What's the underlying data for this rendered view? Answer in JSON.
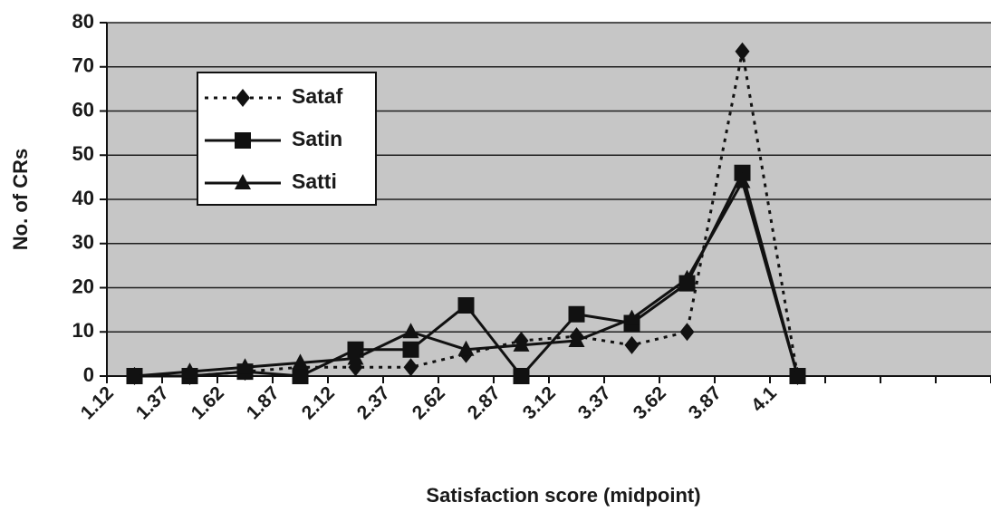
{
  "chart_data": {
    "type": "line",
    "xlabel": "Satisfaction score (midpoint)",
    "ylabel": "No. of CRs",
    "categories": [
      "1.12",
      "1.37",
      "1.62",
      "1.87",
      "2.12",
      "2.37",
      "2.62",
      "2.87",
      "3.12",
      "3.37",
      "3.62",
      "3.87",
      "4.1",
      null,
      null,
      null
    ],
    "series": [
      {
        "name": "Sataf",
        "color": "#111111",
        "line_style": "dotted",
        "marker": "diamond",
        "values": [
          0,
          0,
          1,
          2,
          2,
          2,
          5,
          8,
          9,
          7,
          10,
          73.5,
          0,
          null,
          null,
          null
        ]
      },
      {
        "name": "Satin",
        "color": "#111111",
        "line_style": "solid",
        "marker": "square",
        "values": [
          0,
          0,
          1,
          0,
          6,
          6,
          16,
          0,
          14,
          12,
          21,
          46,
          0,
          null,
          null,
          null
        ]
      },
      {
        "name": "Satti",
        "color": "#111111",
        "line_style": "solid",
        "marker": "triangle",
        "values": [
          0,
          1,
          2,
          3,
          4,
          10,
          6,
          7,
          8,
          13,
          22,
          44,
          0,
          null,
          null,
          null
        ]
      }
    ],
    "ylim": [
      0,
      80
    ],
    "yticks": [
      0,
      10,
      20,
      30,
      40,
      50,
      60,
      70,
      80
    ],
    "grid": true,
    "legend": "upper left"
  }
}
